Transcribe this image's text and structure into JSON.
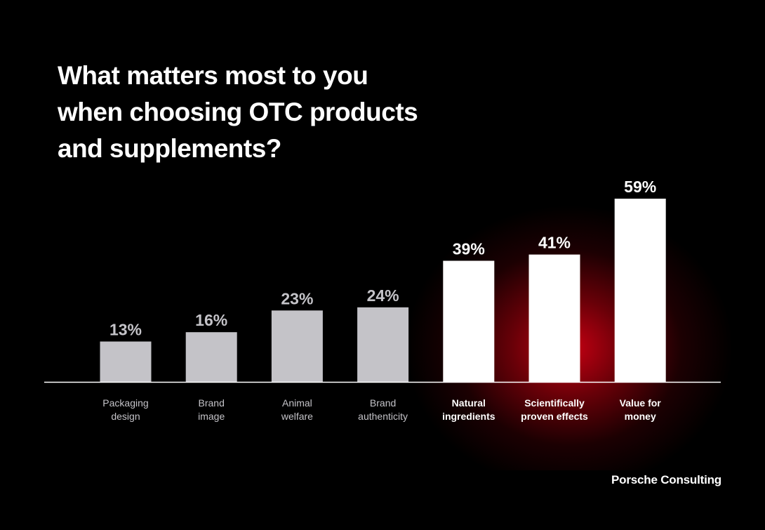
{
  "title_lines": [
    "What matters most to you",
    "when choosing OTC products",
    "and supplements?"
  ],
  "brand": "Porsche Consulting",
  "colors": {
    "background": "#000000",
    "bar_muted": "#c4c3c8",
    "bar_highlight": "#ffffff",
    "label_muted": "#c4c3c8",
    "label_highlight": "#ffffff",
    "glow": "#d70014"
  },
  "chart_data": {
    "type": "bar",
    "categories": [
      [
        "Packaging",
        "design"
      ],
      [
        "Brand",
        "image"
      ],
      [
        "Animal",
        "welfare"
      ],
      [
        "Brand",
        "authenticity"
      ],
      [
        "Natural",
        "ingredients"
      ],
      [
        "Scientifically",
        "proven effects"
      ],
      [
        "Value for",
        "money"
      ]
    ],
    "values": [
      13,
      16,
      23,
      24,
      39,
      41,
      59
    ],
    "value_labels": [
      "13%",
      "16%",
      "23%",
      "24%",
      "39%",
      "41%",
      "59%"
    ],
    "highlighted": [
      false,
      false,
      false,
      false,
      true,
      true,
      true
    ],
    "ylim": [
      0,
      59
    ],
    "grid": false,
    "legend": "none"
  }
}
